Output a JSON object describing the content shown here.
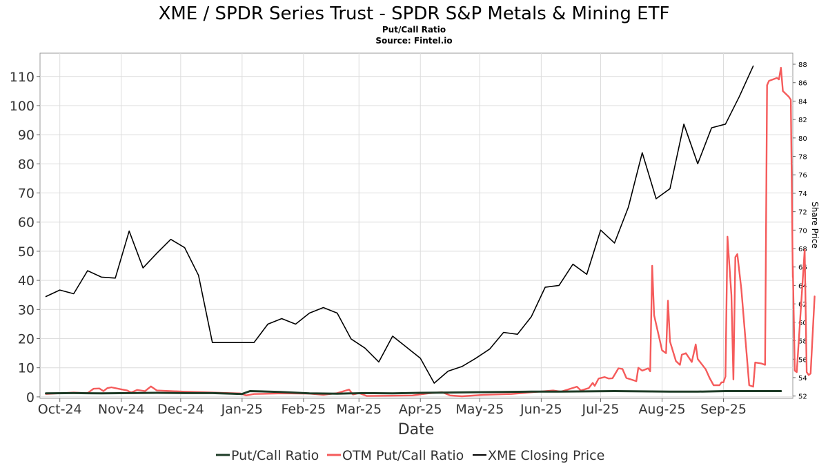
{
  "header": {
    "title": "XME / SPDR Series Trust - SPDR S&P Metals & Mining ETF",
    "subtitle": "Put/Call Ratio",
    "source": "Source: Fintel.io"
  },
  "colors": {
    "put_call": "#1d3b26",
    "otm_put_call": "#f55b5b",
    "closing_price": "#000000",
    "grid": "#dcdcdc"
  },
  "chart_data": {
    "type": "line",
    "title": "XME / SPDR Series Trust - SPDR S&P Metals & Mining ETF",
    "subtitle": "Put/Call Ratio",
    "xlabel": "Date",
    "ylabel": "",
    "y2label": "Share Price",
    "xlim": [
      "2024-09-21",
      "2025-10-06"
    ],
    "ylim": [
      -0.5,
      118
    ],
    "y2lim": [
      51.75,
      89.2
    ],
    "x_ticks": [
      {
        "label": "Oct-24",
        "date": "2024-10-01"
      },
      {
        "label": "Nov-24",
        "date": "2024-11-01"
      },
      {
        "label": "Dec-24",
        "date": "2024-12-01"
      },
      {
        "label": "Jan-25",
        "date": "2025-01-01"
      },
      {
        "label": "Feb-25",
        "date": "2025-02-01"
      },
      {
        "label": "Mar-25",
        "date": "2025-03-01"
      },
      {
        "label": "Apr-25",
        "date": "2025-04-01"
      },
      {
        "label": "May-25",
        "date": "2025-05-01"
      },
      {
        "label": "Jun-25",
        "date": "2025-06-01"
      },
      {
        "label": "Jul-25",
        "date": "2025-07-01"
      },
      {
        "label": "Aug-25",
        "date": "2025-08-01"
      },
      {
        "label": "Sep-25",
        "date": "2025-09-01"
      }
    ],
    "y_ticks": [
      0,
      10,
      20,
      30,
      40,
      50,
      60,
      70,
      80,
      90,
      100,
      110
    ],
    "y2_ticks": [
      52,
      54,
      56,
      58,
      60,
      62,
      64,
      66,
      68,
      70,
      72,
      74,
      76,
      78,
      80,
      82,
      84,
      86,
      88
    ],
    "grid": true,
    "legend_position": "bottom",
    "series": [
      {
        "name": "Put/Call Ratio",
        "axis": "left",
        "points": [
          [
            "2024-09-24",
            1.2
          ],
          [
            "2024-10-08",
            1.3
          ],
          [
            "2024-10-22",
            1.2
          ],
          [
            "2024-11-05",
            1.3
          ],
          [
            "2024-11-19",
            1.4
          ],
          [
            "2024-12-03",
            1.3
          ],
          [
            "2024-12-17",
            1.3
          ],
          [
            "2024-12-27",
            1.1
          ],
          [
            "2025-01-01",
            1.0
          ],
          [
            "2025-01-05",
            2.0
          ],
          [
            "2025-01-20",
            1.7
          ],
          [
            "2025-02-04",
            1.2
          ],
          [
            "2025-02-18",
            1.1
          ],
          [
            "2025-03-04",
            1.3
          ],
          [
            "2025-03-18",
            1.2
          ],
          [
            "2025-04-01",
            1.4
          ],
          [
            "2025-04-15",
            1.5
          ],
          [
            "2025-04-29",
            1.6
          ],
          [
            "2025-05-13",
            1.7
          ],
          [
            "2025-05-27",
            1.8
          ],
          [
            "2025-06-10",
            1.8
          ],
          [
            "2025-06-24",
            1.9
          ],
          [
            "2025-07-08",
            2.0
          ],
          [
            "2025-07-22",
            1.9
          ],
          [
            "2025-08-05",
            1.8
          ],
          [
            "2025-08-19",
            1.8
          ],
          [
            "2025-09-02",
            2.0
          ],
          [
            "2025-09-16",
            2.0
          ],
          [
            "2025-09-30",
            2.0
          ]
        ]
      },
      {
        "name": "OTM Put/Call Ratio",
        "axis": "left",
        "points": [
          [
            "2024-09-24",
            1.0
          ],
          [
            "2024-10-08",
            1.5
          ],
          [
            "2024-10-15",
            1.3
          ],
          [
            "2024-10-18",
            2.8
          ],
          [
            "2024-10-21",
            2.9
          ],
          [
            "2024-10-23",
            2.0
          ],
          [
            "2024-10-25",
            3.0
          ],
          [
            "2024-10-27",
            3.3
          ],
          [
            "2024-11-01",
            2.6
          ],
          [
            "2024-11-04",
            2.2
          ],
          [
            "2024-11-06",
            1.5
          ],
          [
            "2024-11-09",
            2.4
          ],
          [
            "2024-11-13",
            2.0
          ],
          [
            "2024-11-16",
            3.6
          ],
          [
            "2024-11-19",
            2.2
          ],
          [
            "2024-12-03",
            1.8
          ],
          [
            "2024-12-17",
            1.5
          ],
          [
            "2024-12-31",
            1.2
          ],
          [
            "2025-01-03",
            0.5
          ],
          [
            "2025-01-07",
            1.0
          ],
          [
            "2025-01-21",
            1.2
          ],
          [
            "2025-02-04",
            1.1
          ],
          [
            "2025-02-11",
            0.7
          ],
          [
            "2025-02-18",
            1.3
          ],
          [
            "2025-02-24",
            2.5
          ],
          [
            "2025-02-26",
            0.8
          ],
          [
            "2025-03-01",
            1.3
          ],
          [
            "2025-03-05",
            0.3
          ],
          [
            "2025-03-18",
            0.4
          ],
          [
            "2025-03-28",
            0.5
          ],
          [
            "2025-04-05",
            1.2
          ],
          [
            "2025-04-12",
            1.6
          ],
          [
            "2025-04-16",
            0.5
          ],
          [
            "2025-04-22",
            0.2
          ],
          [
            "2025-05-03",
            0.7
          ],
          [
            "2025-05-17",
            1.0
          ],
          [
            "2025-05-31",
            1.8
          ],
          [
            "2025-06-07",
            2.2
          ],
          [
            "2025-06-11",
            1.8
          ],
          [
            "2025-06-19",
            3.5
          ],
          [
            "2025-06-21",
            2.2
          ],
          [
            "2025-06-25",
            3.0
          ],
          [
            "2025-06-27",
            4.8
          ],
          [
            "2025-06-28",
            3.8
          ],
          [
            "2025-06-30",
            6.3
          ],
          [
            "2025-07-03",
            6.8
          ],
          [
            "2025-07-05",
            6.3
          ],
          [
            "2025-07-07",
            6.4
          ],
          [
            "2025-07-10",
            9.8
          ],
          [
            "2025-07-12",
            9.6
          ],
          [
            "2025-07-14",
            6.5
          ],
          [
            "2025-07-19",
            5.4
          ],
          [
            "2025-07-20",
            10.0
          ],
          [
            "2025-07-22",
            9.0
          ],
          [
            "2025-07-25",
            9.8
          ],
          [
            "2025-07-26",
            8.8
          ],
          [
            "2025-07-27",
            45.0
          ],
          [
            "2025-07-28",
            28.0
          ],
          [
            "2025-08-01",
            16.0
          ],
          [
            "2025-08-03",
            15.0
          ],
          [
            "2025-08-04",
            33.0
          ],
          [
            "2025-08-05",
            19.0
          ],
          [
            "2025-08-08",
            12.3
          ],
          [
            "2025-08-10",
            11.0
          ],
          [
            "2025-08-11",
            14.5
          ],
          [
            "2025-08-13",
            15.0
          ],
          [
            "2025-08-16",
            12.0
          ],
          [
            "2025-08-18",
            18.0
          ],
          [
            "2025-08-19",
            13.0
          ],
          [
            "2025-08-23",
            9.5
          ],
          [
            "2025-08-25",
            6.5
          ],
          [
            "2025-08-27",
            4.0
          ],
          [
            "2025-08-30",
            4.0
          ],
          [
            "2025-08-31",
            5.0
          ],
          [
            "2025-09-01",
            5.0
          ],
          [
            "2025-09-02",
            7.0
          ],
          [
            "2025-09-03",
            55.0
          ],
          [
            "2025-09-05",
            35.0
          ],
          [
            "2025-09-06",
            6.0
          ],
          [
            "2025-09-07",
            48.0
          ],
          [
            "2025-09-08",
            49.0
          ],
          [
            "2025-09-10",
            37.0
          ],
          [
            "2025-09-14",
            4.0
          ],
          [
            "2025-09-16",
            3.5
          ],
          [
            "2025-09-17",
            11.8
          ],
          [
            "2025-09-20",
            11.5
          ],
          [
            "2025-09-22",
            11.0
          ],
          [
            "2025-09-23",
            107.0
          ],
          [
            "2025-09-24",
            108.5
          ],
          [
            "2025-09-28",
            109.5
          ],
          [
            "2025-09-29",
            109.0
          ],
          [
            "2025-09-30",
            113.0
          ],
          [
            "2025-10-01",
            105.0
          ],
          [
            "2025-10-04",
            103.0
          ],
          [
            "2025-10-05",
            102.0
          ],
          [
            "2025-10-06",
            41.0
          ],
          [
            "2025-10-06",
            45.0
          ],
          [
            "2025-10-07",
            9.0
          ],
          [
            "2025-10-08",
            8.5
          ],
          [
            "2025-10-12",
            50.5
          ],
          [
            "2025-10-13",
            8.5
          ],
          [
            "2025-10-14",
            7.5
          ],
          [
            "2025-10-15",
            8.0
          ],
          [
            "2025-10-17",
            34.5
          ]
        ]
      },
      {
        "name": "XME Closing Price",
        "axis": "right",
        "points": [
          [
            "2024-09-24",
            62.8
          ],
          [
            "2024-10-01",
            63.5
          ],
          [
            "2024-10-08",
            63.1
          ],
          [
            "2024-10-15",
            65.6
          ],
          [
            "2024-10-22",
            64.9
          ],
          [
            "2024-10-29",
            64.8
          ],
          [
            "2024-11-05",
            69.9
          ],
          [
            "2024-11-12",
            65.9
          ],
          [
            "2024-11-19",
            67.5
          ],
          [
            "2024-11-26",
            69.0
          ],
          [
            "2024-12-03",
            68.1
          ],
          [
            "2024-12-10",
            65.1
          ],
          [
            "2024-12-17",
            57.8
          ],
          [
            "2024-12-24",
            57.8
          ],
          [
            "2024-12-31",
            57.8
          ],
          [
            "2025-01-07",
            57.8
          ],
          [
            "2025-01-14",
            59.8
          ],
          [
            "2025-01-21",
            60.4
          ],
          [
            "2025-01-28",
            59.8
          ],
          [
            "2025-02-04",
            61.0
          ],
          [
            "2025-02-11",
            61.6
          ],
          [
            "2025-02-18",
            61.0
          ],
          [
            "2025-02-25",
            58.2
          ],
          [
            "2025-03-04",
            57.2
          ],
          [
            "2025-03-11",
            55.7
          ],
          [
            "2025-03-18",
            58.5
          ],
          [
            "2025-03-25",
            57.3
          ],
          [
            "2025-04-01",
            56.1
          ],
          [
            "2025-04-08",
            53.4
          ],
          [
            "2025-04-15",
            54.7
          ],
          [
            "2025-04-22",
            55.2
          ],
          [
            "2025-04-29",
            56.1
          ],
          [
            "2025-05-06",
            57.1
          ],
          [
            "2025-05-13",
            58.9
          ],
          [
            "2025-05-20",
            58.7
          ],
          [
            "2025-05-27",
            60.6
          ],
          [
            "2025-06-03",
            63.8
          ],
          [
            "2025-06-10",
            64.0
          ],
          [
            "2025-06-17",
            66.3
          ],
          [
            "2025-06-24",
            65.2
          ],
          [
            "2025-07-01",
            70.0
          ],
          [
            "2025-07-08",
            68.6
          ],
          [
            "2025-07-15",
            72.5
          ],
          [
            "2025-07-22",
            78.4
          ],
          [
            "2025-07-29",
            73.4
          ],
          [
            "2025-08-05",
            74.5
          ],
          [
            "2025-08-12",
            81.5
          ],
          [
            "2025-08-19",
            77.2
          ],
          [
            "2025-08-26",
            81.1
          ],
          [
            "2025-09-02",
            81.5
          ],
          [
            "2025-09-09",
            84.5
          ],
          [
            "2025-09-16",
            87.8
          ]
        ]
      }
    ]
  },
  "legend": [
    {
      "label": "Put/Call Ratio",
      "color": "#1d3b26"
    },
    {
      "label": "OTM Put/Call Ratio",
      "color": "#f55b5b"
    },
    {
      "label": "XME Closing Price",
      "color": "#000000"
    }
  ]
}
